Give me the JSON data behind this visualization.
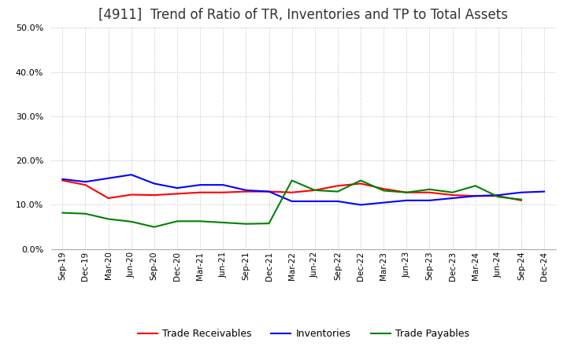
{
  "title": "[4911]  Trend of Ratio of TR, Inventories and TP to Total Assets",
  "x_labels": [
    "Sep-19",
    "Dec-19",
    "Mar-20",
    "Jun-20",
    "Sep-20",
    "Dec-20",
    "Mar-21",
    "Jun-21",
    "Sep-21",
    "Dec-21",
    "Mar-22",
    "Jun-22",
    "Sep-22",
    "Dec-22",
    "Mar-23",
    "Jun-23",
    "Sep-23",
    "Dec-23",
    "Mar-24",
    "Jun-24",
    "Sep-24",
    "Dec-24"
  ],
  "trade_receivables": [
    0.155,
    0.145,
    0.115,
    0.123,
    0.122,
    0.125,
    0.128,
    0.128,
    0.13,
    0.13,
    0.128,
    0.133,
    0.143,
    0.148,
    0.136,
    0.128,
    0.128,
    0.122,
    0.12,
    0.12,
    0.11,
    null
  ],
  "inventories": [
    0.158,
    0.152,
    0.16,
    0.168,
    0.148,
    0.138,
    0.145,
    0.145,
    0.133,
    0.13,
    0.108,
    0.108,
    0.108,
    0.1,
    0.105,
    0.11,
    0.11,
    0.115,
    0.12,
    0.122,
    0.128,
    0.13
  ],
  "trade_payables": [
    0.082,
    0.08,
    0.068,
    0.062,
    0.05,
    0.063,
    0.063,
    0.06,
    0.057,
    0.058,
    0.155,
    0.133,
    0.13,
    0.155,
    0.132,
    0.128,
    0.135,
    0.128,
    0.143,
    0.118,
    0.112,
    null
  ],
  "tr_color": "#ff0000",
  "inv_color": "#0000ff",
  "tp_color": "#008000",
  "ylim": [
    0,
    0.5
  ],
  "yticks": [
    0.0,
    0.1,
    0.2,
    0.3,
    0.4,
    0.5
  ],
  "background_color": "#ffffff",
  "grid_color": "#bbbbbb",
  "title_fontsize": 12,
  "line_width": 1.5
}
